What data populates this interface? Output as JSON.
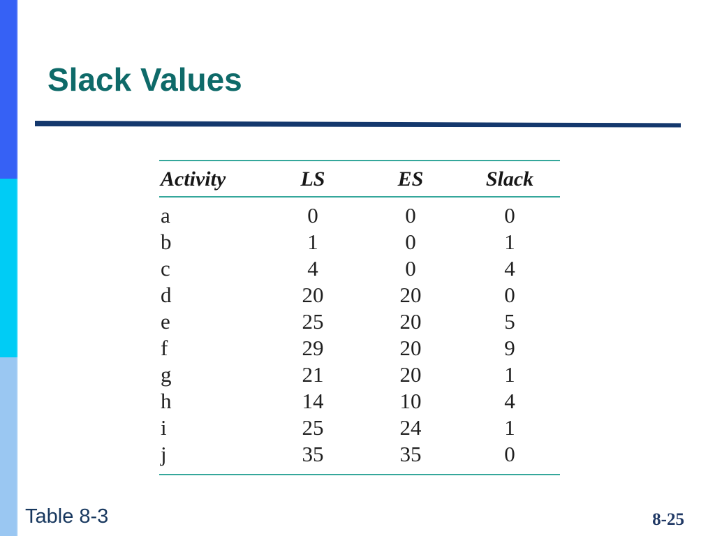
{
  "slide": {
    "title": "Slack Values"
  },
  "table": {
    "headers": [
      "Activity",
      "LS",
      "ES",
      "Slack"
    ],
    "rows": [
      {
        "activity": "a",
        "ls": "0",
        "es": "0",
        "slack": "0"
      },
      {
        "activity": "b",
        "ls": "1",
        "es": "0",
        "slack": "1"
      },
      {
        "activity": "c",
        "ls": "4",
        "es": "0",
        "slack": "4"
      },
      {
        "activity": "d",
        "ls": "20",
        "es": "20",
        "slack": "0"
      },
      {
        "activity": "e",
        "ls": "25",
        "es": "20",
        "slack": "5"
      },
      {
        "activity": "f",
        "ls": "29",
        "es": "20",
        "slack": "9"
      },
      {
        "activity": "g",
        "ls": "21",
        "es": "20",
        "slack": "1"
      },
      {
        "activity": "h",
        "ls": "14",
        "es": "10",
        "slack": "4"
      },
      {
        "activity": "i",
        "ls": "25",
        "es": "24",
        "slack": "1"
      },
      {
        "activity": "j",
        "ls": "35",
        "es": "35",
        "slack": "0"
      }
    ]
  },
  "footer": {
    "caption": "Table 8-3",
    "page_number": "8-25"
  },
  "colors": {
    "band_top": "#3661f5",
    "band_mid": "#00ccf5",
    "band_bottom": "#9ac7f2",
    "title_teal": "#0e6a69",
    "divider_navy": "#14386d",
    "table_rule_teal": "#35a79b",
    "caption_navy": "#17375e",
    "page_number_navy": "#1f3864"
  }
}
